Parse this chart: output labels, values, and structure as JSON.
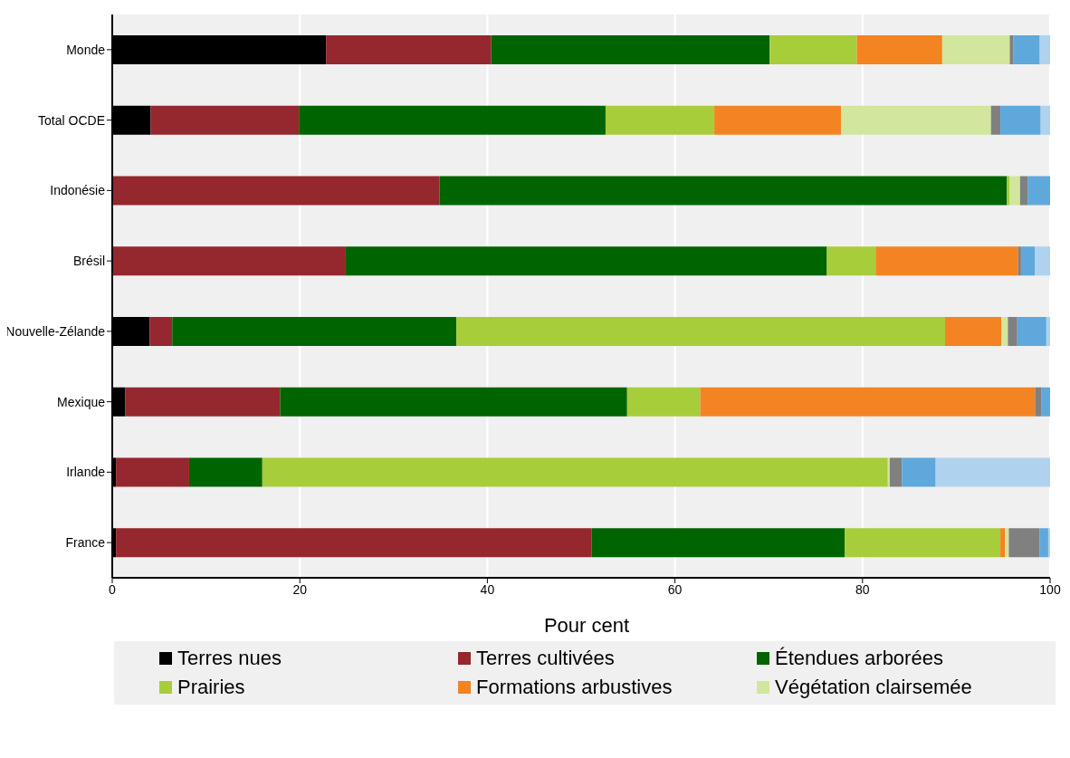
{
  "chart_data": {
    "type": "bar",
    "orientation": "horizontal",
    "stacked": true,
    "categories": [
      "Monde",
      "Total OCDE",
      "Indonésie",
      "Brésil",
      "Nouvelle-Zélande",
      "Mexique",
      "Irlande",
      "France"
    ],
    "xlabel": "Pour cent",
    "xlim": [
      0,
      100
    ],
    "xticks": [
      0,
      20,
      40,
      60,
      80,
      100
    ],
    "grid": "x",
    "legend": "bottom",
    "series": [
      {
        "name": "Terres nues",
        "color": "#000000",
        "values": [
          22.8,
          4.1,
          0,
          0,
          4.0,
          1.4,
          0.4,
          0.4
        ]
      },
      {
        "name": "Terres cultivées",
        "color": "#95272e",
        "values": [
          17.6,
          15.8,
          34.9,
          24.9,
          2.4,
          16.5,
          7.8,
          50.7
        ]
      },
      {
        "name": "Étendues arborées",
        "color": "#006400",
        "values": [
          29.7,
          32.7,
          60.5,
          51.3,
          30.3,
          37.0,
          7.8,
          27.0
        ]
      },
      {
        "name": "Prairies",
        "color": "#a7cd3b",
        "values": [
          9.3,
          11.6,
          0.3,
          5.2,
          52.1,
          7.8,
          66.7,
          16.6
        ]
      },
      {
        "name": "Formations arbustives",
        "color": "#f48322",
        "values": [
          9.1,
          13.5,
          0,
          15.2,
          6.0,
          35.7,
          0,
          0.5
        ]
      },
      {
        "name": "Végétation clairsemée",
        "color": "#d3e69d",
        "values": [
          7.2,
          16.0,
          1.1,
          0,
          0.7,
          0,
          0.2,
          0.4
        ]
      },
      {
        "color": "#808080",
        "values": [
          0.4,
          1.0,
          0.8,
          0.3,
          1.0,
          0.7,
          1.3,
          3.3
        ]
      },
      {
        "color": "#5fa8dc",
        "values": [
          2.8,
          4.3,
          2.4,
          1.5,
          3.1,
          0.9,
          3.6,
          0.9
        ]
      },
      {
        "color": "#afd3ee",
        "values": [
          1.1,
          1.0,
          0,
          1.6,
          0.4,
          0,
          12.2,
          0.2
        ]
      }
    ]
  }
}
